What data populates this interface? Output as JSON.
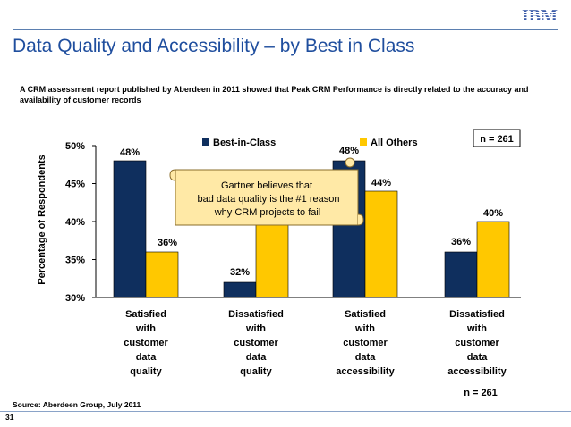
{
  "page": {
    "logo_text": "IBM",
    "title": "Data Quality and Accessibility – by Best in Class",
    "subtitle": "A CRM assessment report published by Aberdeen in 2011 showed that Peak CRM Performance is directly related to the accuracy and availability of customer records",
    "source": "Source: Aberdeen Group, July 2011",
    "page_number": "31",
    "callout_lines": [
      "Gartner believes that",
      "bad data quality is the #1 reason",
      "why CRM projects to fail"
    ],
    "n_box": "n = 261",
    "n_bottom": "n = 261"
  },
  "chart_data": {
    "type": "bar",
    "ylabel": "Percentage of Respondents",
    "ylim": [
      30,
      50
    ],
    "yticks": [
      50,
      45,
      40,
      35,
      30
    ],
    "ytick_labels": [
      "50%",
      "45%",
      "40%",
      "35%",
      "30%"
    ],
    "legend": "top-center",
    "categories": [
      [
        "Satisfied",
        "with",
        "customer",
        "data",
        "quality"
      ],
      [
        "Dissatisfied",
        "with",
        "customer",
        "data",
        "quality"
      ],
      [
        "Satisfied",
        "with",
        "customer",
        "data",
        "accessibility"
      ],
      [
        "Dissatisfied",
        "with",
        "customer",
        "data",
        "accessibility"
      ]
    ],
    "series": [
      {
        "name": "Best-in-Class",
        "color": "#0f2f5e",
        "values": [
          48,
          32,
          48,
          36
        ],
        "labels": [
          "48%",
          "32%",
          "48%",
          "36%"
        ]
      },
      {
        "name": "All Others",
        "color": "#ffc800",
        "values": [
          36,
          40,
          44,
          40
        ],
        "labels": [
          "36%",
          "",
          "44%",
          "40%"
        ]
      }
    ]
  }
}
